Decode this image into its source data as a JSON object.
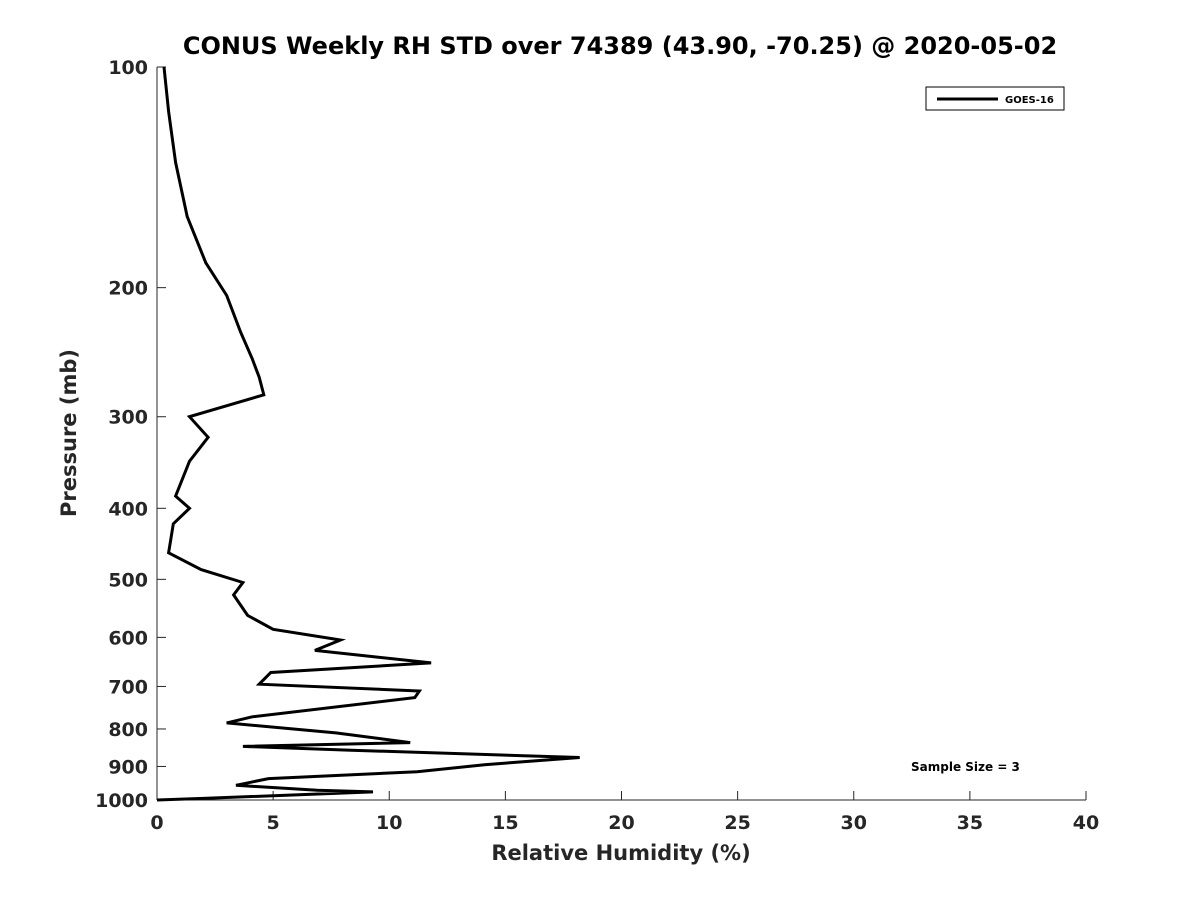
{
  "chart_data": {
    "type": "line",
    "title": "CONUS Weekly RH STD over 74389 (43.90, -70.25) @ 2020-05-02",
    "xlabel": "Relative Humidity (%)",
    "ylabel": "Pressure (mb)",
    "xlim": [
      0,
      40
    ],
    "ylim": [
      100,
      1000
    ],
    "y_scale": "log",
    "y_reversed": true,
    "x_ticks": [
      0,
      5,
      10,
      15,
      20,
      25,
      30,
      35,
      40
    ],
    "y_ticks": [
      100,
      200,
      300,
      400,
      500,
      600,
      700,
      800,
      900,
      1000
    ],
    "grid": false,
    "legend_position": "top-right",
    "annotation": "Sample Size = 3",
    "series": [
      {
        "name": "GOES-16",
        "color": "#000000",
        "points": [
          [
            0.3,
            100
          ],
          [
            0.5,
            115
          ],
          [
            0.8,
            135
          ],
          [
            1.3,
            160
          ],
          [
            2.1,
            185
          ],
          [
            3.0,
            205
          ],
          [
            3.6,
            230
          ],
          [
            4.1,
            250
          ],
          [
            4.4,
            265
          ],
          [
            4.6,
            280
          ],
          [
            1.4,
            300
          ],
          [
            2.2,
            320
          ],
          [
            1.4,
            345
          ],
          [
            0.8,
            385
          ],
          [
            1.4,
            400
          ],
          [
            0.7,
            420
          ],
          [
            0.6,
            440
          ],
          [
            0.5,
            460
          ],
          [
            1.9,
            485
          ],
          [
            3.7,
            505
          ],
          [
            3.3,
            525
          ],
          [
            3.9,
            560
          ],
          [
            5.0,
            585
          ],
          [
            7.9,
            605
          ],
          [
            6.8,
            625
          ],
          [
            11.8,
            650
          ],
          [
            4.9,
            670
          ],
          [
            4.4,
            695
          ],
          [
            11.3,
            710
          ],
          [
            11.1,
            725
          ],
          [
            4.1,
            770
          ],
          [
            3.0,
            785
          ],
          [
            7.7,
            810
          ],
          [
            10.9,
            835
          ],
          [
            3.7,
            845
          ],
          [
            8.2,
            855
          ],
          [
            18.2,
            875
          ],
          [
            14.1,
            895
          ],
          [
            11.2,
            915
          ],
          [
            4.8,
            935
          ],
          [
            3.4,
            955
          ],
          [
            6.9,
            970
          ],
          [
            9.3,
            975
          ],
          [
            2.0,
            995
          ],
          [
            0,
            1000
          ]
        ]
      }
    ]
  }
}
